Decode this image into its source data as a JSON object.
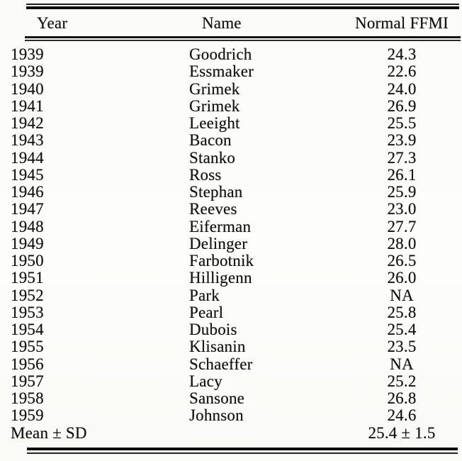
{
  "table": {
    "columns": [
      "Year",
      "Name",
      "Normal FFMI"
    ],
    "rows": [
      [
        "1939",
        "Goodrich",
        "24.3"
      ],
      [
        "1939",
        "Essmaker",
        "22.6"
      ],
      [
        "1940",
        "Grimek",
        "24.0"
      ],
      [
        "1941",
        "Grimek",
        "26.9"
      ],
      [
        "1942",
        "Leeight",
        "25.5"
      ],
      [
        "1943",
        "Bacon",
        "23.9"
      ],
      [
        "1944",
        "Stanko",
        "27.3"
      ],
      [
        "1945",
        "Ross",
        "26.1"
      ],
      [
        "1946",
        "Stephan",
        "25.9"
      ],
      [
        "1947",
        "Reeves",
        "23.0"
      ],
      [
        "1948",
        "Eiferman",
        "27.7"
      ],
      [
        "1949",
        "Delinger",
        "28.0"
      ],
      [
        "1950",
        "Farbotnik",
        "26.5"
      ],
      [
        "1951",
        "Hilligenn",
        "26.0"
      ],
      [
        "1952",
        "Park",
        "NA"
      ],
      [
        "1953",
        "Pearl",
        "25.8"
      ],
      [
        "1954",
        "Dubois",
        "25.4"
      ],
      [
        "1955",
        "Klisanin",
        "23.5"
      ],
      [
        "1956",
        "Schaeffer",
        "NA"
      ],
      [
        "1957",
        "Lacy",
        "25.2"
      ],
      [
        "1958",
        "Sansone",
        "26.8"
      ],
      [
        "1959",
        "Johnson",
        "24.6"
      ]
    ],
    "footer": {
      "label": "Mean ± SD",
      "value": "25.4 ± 1.5"
    }
  },
  "colors": {
    "ink": "#141414",
    "paper": "#fcfcfa",
    "rule": "#0e0e0e"
  }
}
